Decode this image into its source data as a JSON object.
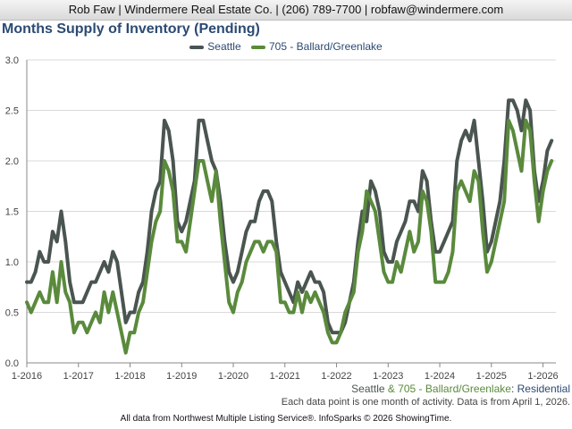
{
  "header": {
    "text": "Rob Faw | Windermere Real Estate Co. | (206) 789-7700 | robfaw@windermere.com"
  },
  "subtitle": {
    "part1": "Seattle",
    "part2": " & 705 - Ballard/Greenlake",
    "part3": ": Residential"
  },
  "note": "Each data point is one month of activity. Data is from April 1, 2026.",
  "footer": "All data from Northwest Multiple Listing Service®. InfoSparks © 2026 ShowingTime.",
  "colors": {
    "seattle": "#4a5550",
    "ballard": "#5a8a3c",
    "title": "#2b4a73",
    "grid": "#d9d9d9",
    "axis": "#888888"
  },
  "chart_data": {
    "type": "line",
    "title": "Months Supply of Inventory (Pending)",
    "xlabel": "",
    "ylabel": "",
    "ylim": [
      0,
      3.0
    ],
    "yticks": [
      "0.0",
      "0.5",
      "1.0",
      "1.5",
      "2.0",
      "2.5",
      "3.0"
    ],
    "xlim": [
      0,
      123
    ],
    "xticks": [
      {
        "pos": 0,
        "label": "1-2016"
      },
      {
        "pos": 12,
        "label": "1-2017"
      },
      {
        "pos": 24,
        "label": "1-2018"
      },
      {
        "pos": 36,
        "label": "1-2019"
      },
      {
        "pos": 48,
        "label": "1-2020"
      },
      {
        "pos": 60,
        "label": "1-2021"
      },
      {
        "pos": 72,
        "label": "1-2022"
      },
      {
        "pos": 84,
        "label": "1-2023"
      },
      {
        "pos": 96,
        "label": "1-2024"
      },
      {
        "pos": 108,
        "label": "1-2025"
      },
      {
        "pos": 120,
        "label": "1-2026"
      }
    ],
    "legend_position": "top-center",
    "grid": true,
    "series": [
      {
        "name": "Seattle",
        "color": "#4a5550",
        "values": [
          0.8,
          0.8,
          0.9,
          1.1,
          1.0,
          1.0,
          1.3,
          1.2,
          1.5,
          1.2,
          0.8,
          0.6,
          0.6,
          0.6,
          0.7,
          0.8,
          0.8,
          0.9,
          1.0,
          0.9,
          1.1,
          1.0,
          0.7,
          0.4,
          0.5,
          0.5,
          0.7,
          0.8,
          1.1,
          1.5,
          1.7,
          1.8,
          2.4,
          2.3,
          2.0,
          1.4,
          1.3,
          1.4,
          1.6,
          1.8,
          2.4,
          2.4,
          2.2,
          2.0,
          1.9,
          1.6,
          1.2,
          0.9,
          0.8,
          0.9,
          1.1,
          1.3,
          1.4,
          1.4,
          1.6,
          1.7,
          1.7,
          1.6,
          1.2,
          0.9,
          0.8,
          0.7,
          0.6,
          0.8,
          0.7,
          0.8,
          0.9,
          0.8,
          0.8,
          0.7,
          0.4,
          0.3,
          0.3,
          0.3,
          0.4,
          0.6,
          0.8,
          1.2,
          1.5,
          1.4,
          1.8,
          1.7,
          1.5,
          1.1,
          1.0,
          1.0,
          1.2,
          1.3,
          1.4,
          1.6,
          1.6,
          1.5,
          1.9,
          1.8,
          1.4,
          1.1,
          1.1,
          1.2,
          1.3,
          1.4,
          2.0,
          2.2,
          2.3,
          2.2,
          2.4,
          2.0,
          1.6,
          1.1,
          1.2,
          1.4,
          1.6,
          2.0,
          2.6,
          2.6,
          2.5,
          2.3,
          2.6,
          2.5,
          1.9,
          1.6,
          1.8,
          2.1,
          2.2
        ]
      },
      {
        "name": "705 - Ballard/Greenlake",
        "color": "#5a8a3c",
        "values": [
          0.6,
          0.5,
          0.6,
          0.7,
          0.6,
          0.6,
          0.9,
          0.6,
          1.0,
          0.7,
          0.6,
          0.3,
          0.4,
          0.4,
          0.3,
          0.4,
          0.5,
          0.4,
          0.7,
          0.5,
          0.7,
          0.5,
          0.3,
          0.1,
          0.3,
          0.3,
          0.5,
          0.6,
          0.9,
          1.2,
          1.4,
          1.5,
          2.0,
          1.9,
          1.7,
          1.2,
          1.2,
          1.1,
          1.4,
          1.7,
          2.0,
          2.0,
          1.8,
          1.6,
          1.9,
          1.4,
          1.0,
          0.6,
          0.5,
          0.7,
          0.8,
          1.0,
          1.1,
          1.2,
          1.2,
          1.1,
          1.2,
          1.2,
          1.1,
          0.6,
          0.6,
          0.5,
          0.5,
          0.7,
          0.5,
          0.7,
          0.6,
          0.7,
          0.6,
          0.5,
          0.3,
          0.2,
          0.2,
          0.3,
          0.5,
          0.6,
          0.7,
          1.1,
          1.3,
          1.7,
          1.6,
          1.5,
          1.2,
          0.9,
          0.8,
          0.8,
          1.0,
          0.9,
          1.1,
          1.3,
          1.1,
          1.2,
          1.7,
          1.6,
          1.3,
          0.8,
          0.8,
          0.8,
          0.9,
          1.1,
          1.7,
          1.8,
          1.7,
          1.6,
          1.9,
          1.8,
          1.3,
          0.9,
          1.0,
          1.2,
          1.4,
          1.6,
          2.4,
          2.3,
          2.1,
          1.9,
          2.4,
          2.3,
          1.8,
          1.4,
          1.7,
          1.9,
          2.0
        ]
      }
    ]
  }
}
